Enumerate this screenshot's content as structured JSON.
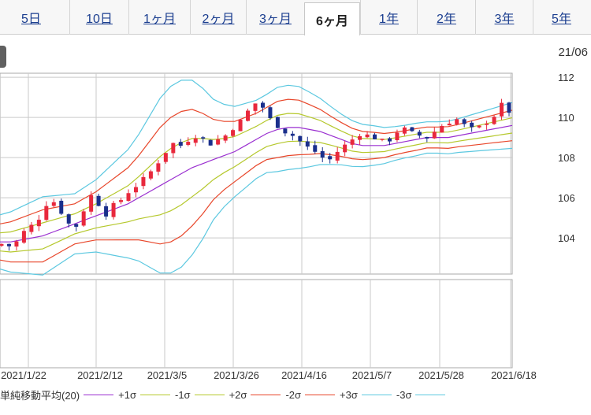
{
  "tabs": [
    {
      "label": "5日",
      "active": false
    },
    {
      "label": "10日",
      "active": false
    },
    {
      "label": "1ヶ月",
      "active": false
    },
    {
      "label": "2ヶ月",
      "active": false
    },
    {
      "label": "3ヶ月",
      "active": false
    },
    {
      "label": "6ヶ月",
      "active": true
    },
    {
      "label": "1年",
      "active": false
    },
    {
      "label": "2年",
      "active": false
    },
    {
      "label": "3年",
      "active": false
    },
    {
      "label": "5年",
      "active": false
    }
  ],
  "date_label": "21/06",
  "colors": {
    "up": "#e8283c",
    "down": "#1a2f8c",
    "sma": "#9a2fd0",
    "band1": "#b5c82c",
    "band2": "#e8462a",
    "band3": "#5cc8e0",
    "grid": "#c9c9c9"
  },
  "legend": [
    {
      "label": "単純移動平均(20)",
      "color": "#9a2fd0"
    },
    {
      "label": "+1σ",
      "color": "#b5c82c"
    },
    {
      "label": "-1σ",
      "color": "#b5c82c"
    },
    {
      "label": "+2σ",
      "color": "#e8462a"
    },
    {
      "label": "-2σ",
      "color": "#e8462a"
    },
    {
      "label": "+3σ",
      "color": "#5cc8e0"
    },
    {
      "label": "-3σ",
      "color": "#5cc8e0"
    }
  ],
  "chart_data": {
    "type": "candlestick",
    "y_ticks": [
      "112",
      "110",
      "108",
      "106",
      "104"
    ],
    "ylim": [
      102.2,
      112.2
    ],
    "x_ticks": [
      "2021/1/22",
      "2021/2/12",
      "2021/3/5",
      "2021/3/26",
      "2021/4/16",
      "2021/5/7",
      "2021/5/28",
      "2021/6/18"
    ],
    "close_path": [
      103.7,
      103.6,
      103.8,
      104.3,
      104.6,
      105.0,
      105.7,
      105.8,
      105.3,
      104.7,
      104.6,
      105.4,
      106.1,
      105.7,
      105.2,
      105.6,
      105.9,
      106.3,
      106.6,
      106.9,
      107.3,
      107.8,
      108.3,
      108.7,
      108.6,
      108.9,
      109.1,
      108.9,
      108.7,
      108.9,
      109.1,
      109.5,
      109.8,
      110.3,
      110.7,
      110.5,
      109.9,
      109.6,
      109.3,
      109.1,
      108.8,
      108.5,
      108.3,
      108.0,
      107.9,
      108.3,
      108.6,
      108.9,
      109.2,
      109.1,
      109.0,
      108.8,
      108.9,
      109.3,
      109.4,
      109.2,
      109.1,
      109.0,
      109.3,
      109.6,
      109.8,
      109.9,
      109.6,
      109.4,
      109.5,
      109.8,
      110.1,
      110.6,
      110.3
    ],
    "sma": [
      103.8,
      103.8,
      103.9,
      104.0,
      104.1,
      104.3,
      104.5,
      104.7,
      104.9,
      105.1,
      105.3,
      105.5,
      105.7,
      106.0,
      106.3,
      106.6,
      106.9,
      107.2,
      107.5,
      107.7,
      107.9,
      108.1,
      108.3,
      108.6,
      108.9,
      109.2,
      109.4,
      109.5,
      109.5,
      109.4,
      109.3,
      109.1,
      108.9,
      108.7,
      108.6,
      108.6,
      108.6,
      108.7,
      108.8,
      108.9,
      109.0,
      109.0,
      109.0,
      109.1,
      109.2,
      109.3,
      109.4,
      109.5,
      109.6
    ],
    "std": [
      0.45,
      0.5,
      0.55,
      0.6,
      0.65,
      0.6,
      0.55,
      0.5,
      0.55,
      0.6,
      0.7,
      0.8,
      0.9,
      1.05,
      1.25,
      1.45,
      1.55,
      1.55,
      1.45,
      1.25,
      1.0,
      0.85,
      0.75,
      0.7,
      0.65,
      0.65,
      0.7,
      0.7,
      0.68,
      0.62,
      0.55,
      0.48,
      0.42,
      0.38,
      0.35,
      0.33,
      0.3,
      0.28,
      0.27,
      0.27,
      0.26,
      0.26,
      0.27,
      0.28,
      0.3,
      0.32,
      0.34,
      0.36,
      0.38
    ]
  }
}
